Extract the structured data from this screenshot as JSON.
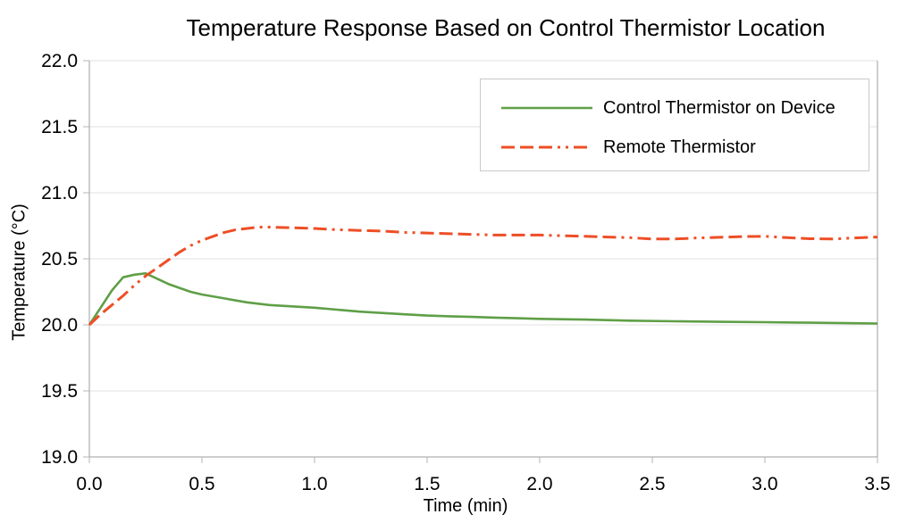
{
  "chart_data": {
    "type": "line",
    "title": "Temperature Response Based on Control Thermistor Location",
    "xlabel": "Time (min)",
    "ylabel": "Temperature (°C)",
    "xlim": [
      0.0,
      3.5
    ],
    "ylim": [
      19.0,
      22.0
    ],
    "x_ticks": [
      0.0,
      0.5,
      1.0,
      1.5,
      2.0,
      2.5,
      3.0,
      3.5
    ],
    "x_tick_labels": [
      "0.0",
      "0.5",
      "1.0",
      "1.5",
      "2.0",
      "2.5",
      "3.0",
      "3.5"
    ],
    "y_ticks": [
      19.0,
      19.5,
      20.0,
      20.5,
      21.0,
      21.5,
      22.0
    ],
    "y_tick_labels": [
      "19.0",
      "19.5",
      "20.0",
      "20.5",
      "21.0",
      "21.5",
      "22.0"
    ],
    "grid": "horizontal-only",
    "legend_position": "inside-top-right",
    "colors": {
      "background": "#ffffff",
      "text": "#000000",
      "grid": "#e2e2e2",
      "axis": "#9e9e9e",
      "tick": "#b5b5b5",
      "legend_border": "#c9c9c9",
      "control_series": "#5f9f47",
      "remote_series": "#ee4e26"
    },
    "series": [
      {
        "name": "Control Thermistor on Device",
        "color": "#5f9f47",
        "line_style": "solid",
        "stroke_width": 2.6,
        "points": [
          [
            0.0,
            20.0
          ],
          [
            0.05,
            20.13
          ],
          [
            0.1,
            20.26
          ],
          [
            0.15,
            20.36
          ],
          [
            0.2,
            20.38
          ],
          [
            0.25,
            20.39
          ],
          [
            0.3,
            20.35
          ],
          [
            0.35,
            20.31
          ],
          [
            0.4,
            20.28
          ],
          [
            0.45,
            20.25
          ],
          [
            0.5,
            20.23
          ],
          [
            0.6,
            20.2
          ],
          [
            0.7,
            20.17
          ],
          [
            0.8,
            20.15
          ],
          [
            0.9,
            20.14
          ],
          [
            1.0,
            20.13
          ],
          [
            1.1,
            20.115
          ],
          [
            1.2,
            20.1
          ],
          [
            1.3,
            20.09
          ],
          [
            1.4,
            20.08
          ],
          [
            1.5,
            20.07
          ],
          [
            1.6,
            20.065
          ],
          [
            1.7,
            20.06
          ],
          [
            1.8,
            20.055
          ],
          [
            1.9,
            20.05
          ],
          [
            2.0,
            20.045
          ],
          [
            2.2,
            20.04
          ],
          [
            2.4,
            20.032
          ],
          [
            2.6,
            20.027
          ],
          [
            2.8,
            20.023
          ],
          [
            3.0,
            20.02
          ],
          [
            3.2,
            20.016
          ],
          [
            3.4,
            20.012
          ],
          [
            3.5,
            20.01
          ]
        ]
      },
      {
        "name": "Remote Thermistor",
        "color": "#ee4e26",
        "line_style": "2-dots-3-dashes",
        "dash_array": "15 6 15 6 15 6 3 6 3 6",
        "stroke_width": 3,
        "points": [
          [
            0.0,
            20.0
          ],
          [
            0.05,
            20.08
          ],
          [
            0.1,
            20.15
          ],
          [
            0.15,
            20.22
          ],
          [
            0.2,
            20.3
          ],
          [
            0.25,
            20.37
          ],
          [
            0.3,
            20.43
          ],
          [
            0.35,
            20.49
          ],
          [
            0.4,
            20.55
          ],
          [
            0.45,
            20.6
          ],
          [
            0.5,
            20.64
          ],
          [
            0.55,
            20.67
          ],
          [
            0.6,
            20.7
          ],
          [
            0.65,
            20.72
          ],
          [
            0.7,
            20.73
          ],
          [
            0.75,
            20.74
          ],
          [
            0.8,
            20.74
          ],
          [
            0.9,
            20.735
          ],
          [
            1.0,
            20.73
          ],
          [
            1.1,
            20.72
          ],
          [
            1.2,
            20.715
          ],
          [
            1.3,
            20.71
          ],
          [
            1.4,
            20.7
          ],
          [
            1.5,
            20.695
          ],
          [
            1.6,
            20.69
          ],
          [
            1.7,
            20.685
          ],
          [
            1.8,
            20.68
          ],
          [
            1.9,
            20.68
          ],
          [
            2.0,
            20.68
          ],
          [
            2.1,
            20.675
          ],
          [
            2.2,
            20.67
          ],
          [
            2.3,
            20.665
          ],
          [
            2.4,
            20.66
          ],
          [
            2.5,
            20.65
          ],
          [
            2.6,
            20.65
          ],
          [
            2.7,
            20.658
          ],
          [
            2.8,
            20.663
          ],
          [
            2.9,
            20.668
          ],
          [
            3.0,
            20.67
          ],
          [
            3.1,
            20.66
          ],
          [
            3.2,
            20.652
          ],
          [
            3.3,
            20.65
          ],
          [
            3.4,
            20.658
          ],
          [
            3.5,
            20.665
          ]
        ]
      }
    ]
  }
}
